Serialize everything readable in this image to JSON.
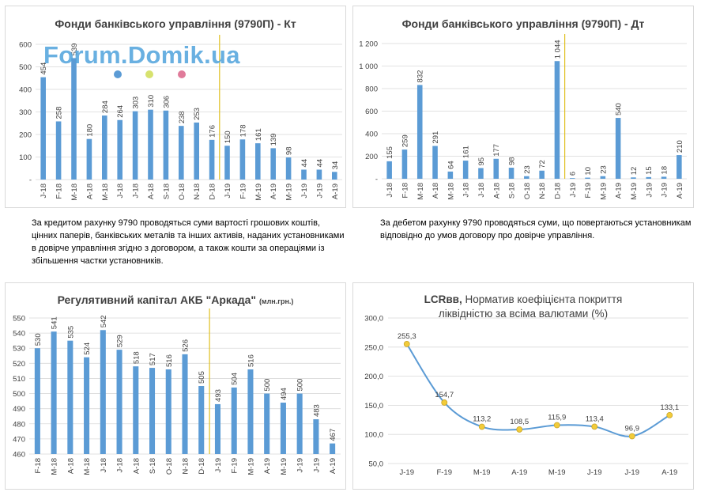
{
  "watermark": {
    "text": "Forum.Domik.ua",
    "dot_colors": [
      "#5b9bd5",
      "#d7e26e",
      "#e07b9a"
    ]
  },
  "colors": {
    "bar": "#5b9bd5",
    "divider": "#e0c020",
    "marker": "#f2cc3a",
    "grid": "#d9d9d9"
  },
  "descriptions": {
    "credit": "За кредитом рахунку 9790 проводяться суми вартості грошових коштів, цінних паперів, банківських металів та інших активів, наданих установниками в довірче управління згідно з договором, а також кошти за операціями із збільшення частки установників.",
    "debit": "За дебетом рахунку 9790 проводяться суми, що повертаються установникам відповідно до умов договору про довірче управління."
  },
  "chart_data": [
    {
      "type": "bar",
      "title": "Фонди банківського управління (9790П) - Кт",
      "categories": [
        "J-18",
        "F-18",
        "M-18",
        "A-18",
        "M-18",
        "J-18",
        "J-18",
        "A-18",
        "S-18",
        "O-18",
        "N-18",
        "D-18",
        "J-19",
        "F-19",
        "M-19",
        "A-19",
        "M-19",
        "J-19",
        "J-19",
        "A-19"
      ],
      "values": [
        454,
        258,
        539,
        180,
        284,
        264,
        303,
        310,
        306,
        238,
        253,
        176,
        150,
        178,
        161,
        139,
        98,
        44,
        44,
        34
      ],
      "value_labels": [
        "454",
        "258",
        "539",
        "180",
        "284",
        "264",
        "303",
        "310",
        "306",
        "238",
        "253",
        "176",
        "150",
        "178",
        "161",
        "139",
        "98",
        "44",
        "44",
        "34"
      ],
      "ylim": [
        0,
        600
      ],
      "yticks": [
        "-",
        "100",
        "200",
        "300",
        "400",
        "500",
        "600"
      ],
      "divider_after_index": 11,
      "grid": true
    },
    {
      "type": "bar",
      "title": "Фонди банківського управління (9790П) - Дт",
      "categories": [
        "J-18",
        "F-18",
        "M-18",
        "A-18",
        "M-18",
        "J-18",
        "J-18",
        "A-18",
        "S-18",
        "O-18",
        "N-18",
        "D-18",
        "J-19",
        "F-19",
        "M-19",
        "A-19",
        "M-19",
        "J-19",
        "J-19",
        "A-19"
      ],
      "values": [
        155,
        259,
        832,
        291,
        64,
        161,
        95,
        177,
        98,
        23,
        72,
        1044,
        6,
        10,
        23,
        540,
        12,
        15,
        18,
        210
      ],
      "value_labels": [
        "155",
        "259",
        "832",
        "291",
        "64",
        "161",
        "95",
        "177",
        "98",
        "23",
        "72",
        "1 044",
        "6",
        "10",
        "23",
        "540",
        "12",
        "15",
        "18",
        "210"
      ],
      "ylim": [
        0,
        1200
      ],
      "yticks": [
        "-",
        "200",
        "400",
        "600",
        "800",
        "1 000",
        "1 200"
      ],
      "divider_after_index": 11,
      "grid": true
    },
    {
      "type": "bar",
      "title": "Регулятивний капітал АКБ \"Аркада\"",
      "subtitle": "(млн.грн.)",
      "categories": [
        "F-18",
        "M-18",
        "A-18",
        "M-18",
        "J-18",
        "J-18",
        "A-18",
        "S-18",
        "O-18",
        "N-18",
        "D-18",
        "J-19",
        "F-19",
        "M-19",
        "A-19",
        "M-19",
        "J-19",
        "J-19",
        "A-19"
      ],
      "values": [
        530,
        541,
        535,
        524,
        542,
        529,
        518,
        517,
        516,
        526,
        505,
        493,
        504,
        516,
        500,
        494,
        500,
        483,
        467
      ],
      "value_labels": [
        "530",
        "541",
        "535",
        "524",
        "542",
        "529",
        "518",
        "517",
        "516",
        "526",
        "505",
        "493",
        "504",
        "516",
        "500",
        "494",
        "500",
        "483",
        "467"
      ],
      "ylim": [
        460,
        550
      ],
      "yticks": [
        "460",
        "470",
        "480",
        "490",
        "500",
        "510",
        "520",
        "530",
        "540",
        "550"
      ],
      "divider_after_index": 10,
      "grid": true
    },
    {
      "type": "line",
      "title_bold": "LCRвв,",
      "title_rest": " Норматив коефіцієнта покриття",
      "title_line2": "ліквідністю за всіма валютами (%)",
      "categories": [
        "J-19",
        "F-19",
        "M-19",
        "A-19",
        "M-19",
        "J-19",
        "J-19",
        "A-19"
      ],
      "values": [
        255.3,
        154.7,
        113.2,
        108.5,
        115.9,
        113.4,
        96.9,
        133.1
      ],
      "value_labels": [
        "255,3",
        "154,7",
        "113,2",
        "108,5",
        "115,9",
        "113,4",
        "96,9",
        "133,1"
      ],
      "ylim": [
        50,
        300
      ],
      "yticks": [
        "50,0",
        "100,0",
        "150,0",
        "200,0",
        "250,0",
        "300,0"
      ],
      "grid": true
    }
  ]
}
